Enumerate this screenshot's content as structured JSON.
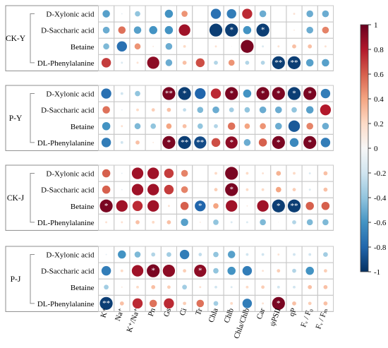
{
  "chart_data": {
    "type": "heatmap",
    "subtype": "correlation-circles",
    "columns": [
      "K⁺",
      "Na⁺",
      "K⁺/Na⁺",
      "Pn",
      "Gs",
      "Ci",
      "Tr",
      "Chla",
      "Chlb",
      "Chla/Chlb",
      "Car",
      "ψPSII",
      "qP",
      "Fᵥ / F₀",
      "Fᵥ / Fₘ"
    ],
    "colorbar": {
      "ticks": [
        1,
        0.8,
        0.6,
        0.4,
        0.2,
        0,
        -0.2,
        -0.4,
        -0.6,
        -0.8,
        -1
      ],
      "tick_labels": [
        "1",
        "0.8",
        "0.6",
        "0.4",
        "0.2",
        "0",
        "-0.2",
        "-0.4",
        "-0.6",
        "-0.8",
        "-1"
      ],
      "range": [
        -1,
        1
      ],
      "colors": [
        "#67001f",
        "#b2182b",
        "#d6604d",
        "#f4a582",
        "#fddbc7",
        "#f7f7f7",
        "#d1e5f0",
        "#92c5de",
        "#4393c3",
        "#2166ac",
        "#053061"
      ]
    },
    "groups": [
      {
        "name": "CK-Y",
        "rows": [
          {
            "label": "D-Xylonic acid",
            "values": [
              -0.55,
              -0.1,
              -0.4,
              0,
              -0.6,
              0.45,
              0,
              -0.75,
              -0.7,
              0.75,
              -0.5,
              0,
              0.15,
              -0.5,
              -0.5
            ],
            "marks": [
              "",
              "",
              "",
              "",
              "",
              "",
              "",
              "",
              "",
              "",
              "",
              "",
              "",
              "",
              ""
            ]
          },
          {
            "label": "D-Saccharic acid",
            "values": [
              -0.5,
              0.55,
              -0.55,
              -0.6,
              -0.6,
              0.85,
              0,
              -0.95,
              -0.95,
              -0.6,
              -0.95,
              0,
              0.1,
              -0.5,
              0.5
            ],
            "marks": [
              "",
              "",
              "",
              "",
              "",
              "",
              "",
              "",
              "*",
              "",
              "*",
              "",
              "",
              "",
              ""
            ]
          },
          {
            "label": "Betaine",
            "values": [
              -0.45,
              -0.75,
              0.45,
              0.1,
              -0.5,
              0.2,
              0,
              0.15,
              0.05,
              0.95,
              -0.15,
              0.15,
              0.3,
              0.3,
              0.15
            ],
            "marks": [
              "",
              "",
              "",
              "",
              "",
              "",
              "",
              "",
              "",
              "",
              "",
              "",
              "",
              "",
              ""
            ]
          },
          {
            "label": "DL-Phenylalanine",
            "values": [
              0.7,
              -0.15,
              0.15,
              0.9,
              -0.5,
              0.3,
              0.65,
              -0.3,
              0.45,
              -0.3,
              -0.3,
              -0.95,
              -0.95,
              -0.55,
              -0.55
            ],
            "marks": [
              "",
              "",
              "",
              "",
              "",
              "",
              "",
              "",
              "",
              "",
              "",
              "**",
              "**",
              "",
              ""
            ]
          }
        ]
      },
      {
        "name": "P-Y",
        "rows": [
          {
            "label": "D-Xylonic acid",
            "values": [
              -0.75,
              -0.2,
              -0.4,
              0,
              0.95,
              -0.95,
              -0.8,
              0.75,
              0.95,
              -0.6,
              0.95,
              0.95,
              -0.95,
              0.95,
              -0.7
            ],
            "marks": [
              "",
              "",
              "",
              "",
              "**",
              "*",
              "",
              "",
              "*",
              "",
              "*",
              "*",
              "*",
              "*",
              ""
            ]
          },
          {
            "label": "D-Saccharic acid",
            "values": [
              0.55,
              -0.1,
              0.2,
              0.25,
              0.3,
              -0.25,
              -0.45,
              -0.5,
              -0.35,
              -0.4,
              -0.5,
              -0.5,
              -0.4,
              -0.55,
              0.8
            ],
            "marks": [
              "",
              "",
              "",
              "",
              "",
              "",
              "",
              "",
              "",
              "",
              "",
              "",
              "",
              "",
              ""
            ]
          },
          {
            "label": "Betaine",
            "values": [
              -0.6,
              0.15,
              -0.45,
              -0.4,
              0.4,
              0.3,
              -0.4,
              -0.3,
              0.55,
              0.4,
              0.45,
              -0.5,
              -0.85,
              0.5,
              -0.5
            ],
            "marks": [
              "",
              "",
              "",
              "",
              "",
              "",
              "",
              "",
              "",
              "",
              "",
              "",
              "",
              "",
              ""
            ]
          },
          {
            "label": "DL-Phenylalanine",
            "values": [
              -0.7,
              -0.2,
              0.3,
              0.1,
              0.95,
              -0.95,
              -0.9,
              0.65,
              0.9,
              -0.5,
              0.6,
              0.95,
              -0.65,
              0.95,
              -0.7
            ],
            "marks": [
              "",
              "",
              "",
              "",
              "*",
              "**",
              "**",
              "",
              "*",
              "",
              "",
              "*",
              "",
              "*",
              ""
            ]
          }
        ]
      },
      {
        "name": "CK-J",
        "rows": [
          {
            "label": "D-Xylonic acid",
            "values": [
              0.6,
              -0.1,
              0.85,
              0.85,
              0.7,
              0.5,
              0,
              0.2,
              0.95,
              0.2,
              0.15,
              0.35,
              0.2,
              -0.15,
              0.3
            ],
            "marks": [
              "",
              "",
              "",
              "",
              "",
              "",
              "",
              "",
              "",
              "",
              "",
              "",
              "",
              "",
              ""
            ]
          },
          {
            "label": "D-Saccharic acid",
            "values": [
              0.6,
              -0.1,
              0.85,
              0.85,
              0.7,
              0.5,
              0,
              0.25,
              0.95,
              0.2,
              0.2,
              0.4,
              0.25,
              -0.15,
              0.3
            ],
            "marks": [
              "",
              "",
              "",
              "",
              "",
              "",
              "",
              "",
              "*",
              "",
              "",
              "",
              "",
              "",
              ""
            ]
          },
          {
            "label": "Betaine",
            "values": [
              0.95,
              0.85,
              0.75,
              0.85,
              0.15,
              0.6,
              -0.8,
              0.4,
              0.85,
              0.1,
              0.85,
              -0.95,
              -0.95,
              0.6,
              0.6
            ],
            "marks": [
              "*",
              "",
              "",
              "",
              "",
              "",
              "*",
              "",
              "",
              "",
              "",
              "*",
              "**",
              "",
              ""
            ]
          },
          {
            "label": "DL-Phenylalanine",
            "values": [
              0.15,
              0.15,
              0.3,
              0.2,
              0.3,
              -0.55,
              0.1,
              -0.4,
              -0.15,
              -0.15,
              -0.45,
              0.05,
              -0.3,
              -0.45,
              -0.45
            ],
            "marks": [
              "",
              "",
              "",
              "",
              "",
              "",
              "",
              "",
              "",
              "",
              "",
              "",
              "",
              "",
              ""
            ]
          }
        ]
      },
      {
        "name": "P-J",
        "rows": [
          {
            "label": "D-Xylonic acid",
            "values": [
              -0.1,
              -0.6,
              -0.45,
              -0.3,
              -0.35,
              -0.7,
              -0.25,
              -0.4,
              -0.55,
              -0.2,
              -0.2,
              0.15,
              -0.2,
              -0.2,
              -0.35
            ],
            "marks": [
              "",
              "",
              "",
              "",
              "",
              "",
              "",
              "",
              "",
              "",
              "",
              "",
              "",
              "",
              ""
            ]
          },
          {
            "label": "D-Saccharic acid",
            "values": [
              -0.7,
              0.2,
              0.85,
              0.95,
              0.9,
              0.25,
              0.9,
              -0.4,
              -0.6,
              -0.7,
              0.15,
              0.25,
              -0.3,
              -0.6,
              0.25
            ],
            "marks": [
              "",
              "",
              "",
              "*",
              "",
              "",
              "*",
              "",
              "",
              "",
              "",
              "",
              "",
              "",
              ""
            ]
          },
          {
            "label": "Betaine",
            "values": [
              -0.35,
              0.1,
              0.2,
              0.3,
              0.25,
              -0.35,
              0.15,
              -0.2,
              -0.15,
              0.2,
              0.25,
              -0.2,
              -0.2,
              0.3,
              0.3
            ],
            "marks": [
              "",
              "",
              "",
              "",
              "",
              "",
              "",
              "",
              "",
              "",
              "",
              "",
              "",
              "",
              ""
            ]
          },
          {
            "label": "DL-Phenylalanine",
            "values": [
              -0.95,
              0.3,
              0.75,
              0.55,
              0.75,
              0.25,
              0.55,
              -0.35,
              0.2,
              -0.7,
              0.15,
              0.95,
              0.3,
              0.25,
              0.3
            ],
            "marks": [
              "**",
              "",
              "",
              "",
              "",
              "",
              "",
              "",
              "",
              "",
              "",
              "*",
              "",
              "",
              ""
            ]
          }
        ]
      }
    ]
  }
}
